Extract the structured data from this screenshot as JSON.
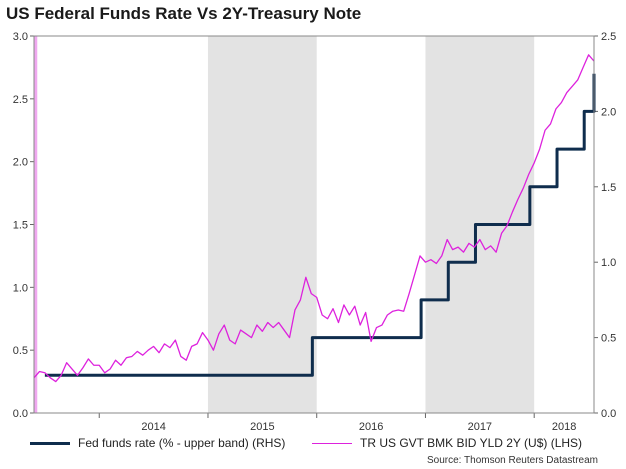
{
  "chart_data": {
    "type": "line",
    "title": "US Federal Funds Rate Vs 2Y-Treasury Note",
    "source": "Source: Thomson Reuters Datastream",
    "x_ticks": [
      "2014",
      "2015",
      "2016",
      "2017",
      "2018"
    ],
    "x_range": [
      2013.4,
      2018.55
    ],
    "left_axis": {
      "ylim": [
        0.0,
        3.0
      ],
      "ticks": [
        "0.0",
        "0.5",
        "1.0",
        "1.5",
        "2.0",
        "2.5",
        "3.0"
      ]
    },
    "right_axis": {
      "ylim": [
        0.0,
        2.5
      ],
      "ticks": [
        "0.0",
        "0.5",
        "1.0",
        "1.5",
        "2.0",
        "2.5"
      ]
    },
    "shaded_years": [
      [
        2013.4,
        2013.43
      ],
      [
        2015.0,
        2016.0
      ],
      [
        2017.0,
        2018.0
      ]
    ],
    "series": [
      {
        "name": "Fed funds rate (% - upper band) (RHS)",
        "axis": "right",
        "color": "#0f2d4d",
        "step": true,
        "x": [
          2013.5,
          2015.96,
          2016.96,
          2017.21,
          2017.46,
          2017.96,
          2018.21,
          2018.46,
          2018.55
        ],
        "y": [
          0.25,
          0.5,
          0.75,
          1.0,
          1.25,
          1.5,
          1.75,
          2.0,
          2.25
        ]
      },
      {
        "name": "TR US GVT BMK BID YLD 2Y (U$) (LHS)",
        "axis": "left",
        "color": "#dd22dd",
        "step": false,
        "x": [
          2013.4,
          2013.45,
          2013.5,
          2013.55,
          2013.6,
          2013.65,
          2013.7,
          2013.75,
          2013.8,
          2013.85,
          2013.9,
          2013.95,
          2014.0,
          2014.05,
          2014.1,
          2014.15,
          2014.2,
          2014.25,
          2014.3,
          2014.35,
          2014.4,
          2014.45,
          2014.5,
          2014.55,
          2014.6,
          2014.65,
          2014.7,
          2014.75,
          2014.8,
          2014.85,
          2014.9,
          2014.95,
          2015.0,
          2015.05,
          2015.1,
          2015.15,
          2015.2,
          2015.25,
          2015.3,
          2015.35,
          2015.4,
          2015.45,
          2015.5,
          2015.55,
          2015.6,
          2015.65,
          2015.7,
          2015.75,
          2015.8,
          2015.85,
          2015.9,
          2015.95,
          2016.0,
          2016.05,
          2016.1,
          2016.15,
          2016.2,
          2016.25,
          2016.3,
          2016.35,
          2016.4,
          2016.45,
          2016.5,
          2016.55,
          2016.6,
          2016.65,
          2016.7,
          2016.75,
          2016.8,
          2016.85,
          2016.9,
          2016.95,
          2017.0,
          2017.05,
          2017.1,
          2017.15,
          2017.2,
          2017.25,
          2017.3,
          2017.35,
          2017.4,
          2017.45,
          2017.5,
          2017.55,
          2017.6,
          2017.65,
          2017.7,
          2017.75,
          2017.8,
          2017.85,
          2017.9,
          2017.95,
          2018.0,
          2018.05,
          2018.1,
          2018.15,
          2018.2,
          2018.25,
          2018.3,
          2018.35,
          2018.4,
          2018.45,
          2018.5,
          2018.55
        ],
        "y": [
          0.28,
          0.33,
          0.32,
          0.28,
          0.25,
          0.3,
          0.4,
          0.35,
          0.3,
          0.36,
          0.43,
          0.38,
          0.38,
          0.32,
          0.35,
          0.42,
          0.38,
          0.44,
          0.45,
          0.49,
          0.46,
          0.5,
          0.53,
          0.48,
          0.55,
          0.52,
          0.58,
          0.45,
          0.42,
          0.53,
          0.55,
          0.64,
          0.58,
          0.5,
          0.63,
          0.7,
          0.58,
          0.55,
          0.66,
          0.63,
          0.6,
          0.7,
          0.65,
          0.72,
          0.68,
          0.72,
          0.66,
          0.6,
          0.82,
          0.9,
          1.08,
          0.95,
          0.92,
          0.78,
          0.75,
          0.83,
          0.72,
          0.86,
          0.78,
          0.85,
          0.7,
          0.8,
          0.57,
          0.68,
          0.7,
          0.78,
          0.81,
          0.82,
          0.81,
          0.95,
          1.1,
          1.25,
          1.2,
          1.22,
          1.19,
          1.25,
          1.38,
          1.3,
          1.32,
          1.28,
          1.35,
          1.32,
          1.38,
          1.3,
          1.33,
          1.28,
          1.43,
          1.49,
          1.6,
          1.7,
          1.79,
          1.9,
          1.99,
          2.1,
          2.25,
          2.3,
          2.42,
          2.47,
          2.55,
          2.6,
          2.65,
          2.75,
          2.85,
          2.8
        ]
      }
    ]
  }
}
